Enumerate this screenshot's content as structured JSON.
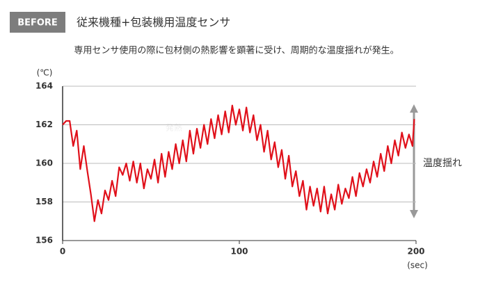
{
  "badge": "BEFORE",
  "chart_data": {
    "type": "line",
    "title": "従来機種+包装機用温度センサ",
    "subtitle": "専用センサ使用の際に包材側の熱影響を顕著に受け、周期的な温度揺れが発生。",
    "y_unit": "(℃)",
    "x_unit": "(sec)",
    "annotation": "温度揺れ",
    "watermark": "発熱",
    "x": [
      0,
      2,
      4,
      6,
      8,
      10,
      12,
      14,
      16,
      18,
      20,
      22,
      24,
      26,
      28,
      30,
      32,
      34,
      36,
      38,
      40,
      42,
      44,
      46,
      48,
      50,
      52,
      54,
      56,
      58,
      60,
      62,
      64,
      66,
      68,
      70,
      72,
      74,
      76,
      78,
      80,
      82,
      84,
      86,
      88,
      90,
      92,
      94,
      96,
      98,
      100,
      102,
      104,
      106,
      108,
      110,
      112,
      114,
      116,
      118,
      120,
      122,
      124,
      126,
      128,
      130,
      132,
      134,
      136,
      138,
      140,
      142,
      144,
      146,
      148,
      150,
      152,
      154,
      156,
      158,
      160,
      162,
      164,
      166,
      168,
      170,
      172,
      174,
      176,
      178,
      180,
      182,
      184,
      186,
      188,
      190,
      192,
      194,
      196,
      198,
      199
    ],
    "series": [
      {
        "color": "#e0101a",
        "values": [
          162.0,
          162.2,
          162.2,
          160.9,
          161.7,
          159.7,
          160.9,
          159.6,
          158.4,
          157.0,
          158.1,
          157.4,
          158.6,
          158.1,
          159.1,
          158.3,
          159.8,
          159.4,
          160.0,
          159.1,
          160.1,
          159.0,
          160.0,
          158.7,
          159.7,
          159.2,
          160.2,
          159.0,
          160.5,
          159.3,
          160.6,
          159.7,
          161.0,
          160.0,
          161.2,
          160.1,
          161.7,
          160.5,
          161.8,
          160.8,
          162.0,
          161.0,
          162.3,
          161.3,
          162.5,
          161.5,
          162.7,
          161.6,
          163.0,
          162.0,
          162.8,
          161.7,
          162.9,
          161.6,
          162.5,
          161.2,
          162.0,
          160.6,
          161.7,
          160.2,
          161.1,
          159.8,
          160.7,
          159.2,
          160.4,
          158.8,
          159.6,
          158.3,
          159.1,
          157.6,
          158.8,
          157.8,
          158.7,
          157.5,
          158.8,
          157.4,
          158.4,
          157.6,
          158.9,
          157.9,
          158.7,
          158.2,
          159.3,
          158.3,
          159.5,
          158.8,
          159.7,
          159.0,
          160.1,
          159.3,
          160.5,
          159.6,
          160.9,
          160.0,
          161.2,
          160.4,
          161.6,
          160.8,
          161.5,
          160.9,
          162.3
        ]
      }
    ],
    "xlim": [
      0,
      200
    ],
    "xticks": [
      0,
      100,
      200
    ],
    "ylim": [
      156,
      164
    ],
    "yticks": [
      156,
      158,
      160,
      162,
      164
    ],
    "grid": true
  }
}
